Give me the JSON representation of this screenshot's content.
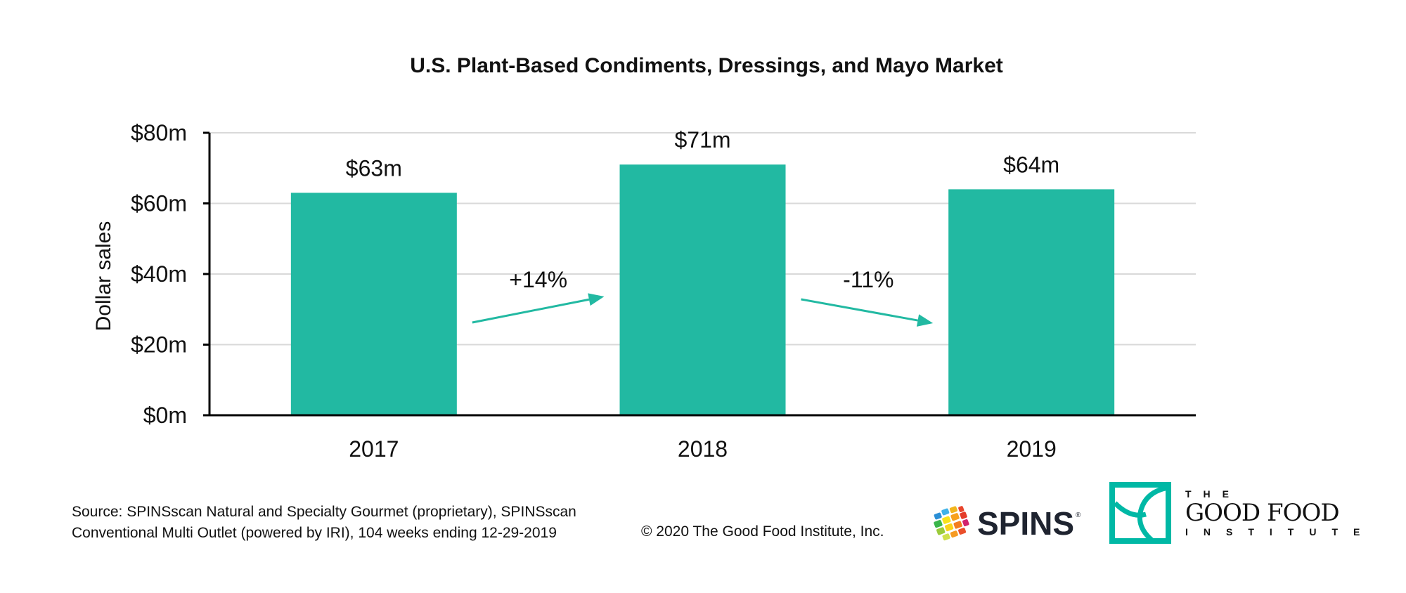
{
  "chart_data": {
    "type": "bar",
    "title": "U.S. Plant-Based Condiments, Dressings, and Mayo Market",
    "xlabel": "",
    "ylabel": "Dollar sales",
    "categories": [
      "2017",
      "2018",
      "2019"
    ],
    "values": [
      63,
      71,
      64
    ],
    "value_unit": "millions USD",
    "data_labels": [
      "$63m",
      "$71m",
      "$64m"
    ],
    "ylim": [
      0,
      80
    ],
    "yticks": [
      0,
      20,
      40,
      60,
      80
    ],
    "ytick_labels": [
      "$0m",
      "$20m",
      "$40m",
      "$60m",
      "$80m"
    ],
    "grid": true,
    "legend": "none",
    "bar_color": "#22b9a2",
    "annotations": [
      {
        "text": "+14%",
        "from": "2017",
        "to": "2018",
        "direction": "up"
      },
      {
        "text": "-11%",
        "from": "2018",
        "to": "2019",
        "direction": "down"
      }
    ]
  },
  "footer": {
    "source_line1": "Source: SPINSscan Natural and Specialty Gourmet (proprietary), SPINSscan",
    "source_line2": "Conventional Multi Outlet (powered by IRI), 104 weeks ending 12-29-2019",
    "copyright": "© 2020 The Good Food Institute, Inc."
  },
  "logos": {
    "spins": {
      "text": "SPINS",
      "registered": "®",
      "icon": "spins-globe-icon"
    },
    "gfi": {
      "the": "THE",
      "main": "GOOD FOOD",
      "institute": "INSTITUTE",
      "color": "#00b8a5",
      "icon": "gfi-leaf-icon"
    }
  },
  "colors": {
    "accent": "#22b9a2",
    "grid": "#d9d9d9",
    "axis": "#000000"
  }
}
